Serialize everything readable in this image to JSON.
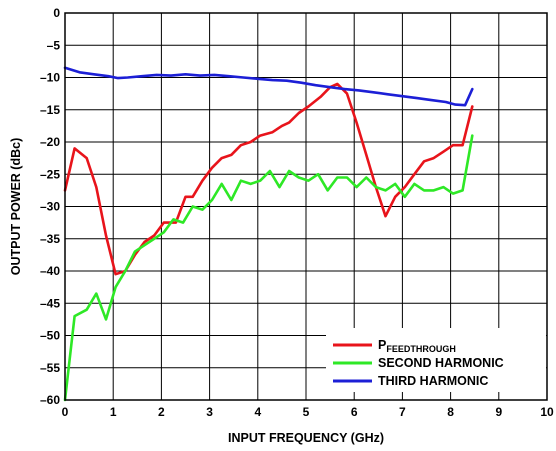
{
  "chart_data": {
    "type": "line",
    "xlabel": "INPUT FREQUENCY (GHz)",
    "ylabel": "OUTPUT POWER (dBc)",
    "xlim": [
      0,
      10
    ],
    "ylim": [
      -60,
      0
    ],
    "xticks": [
      "0",
      "1",
      "2",
      "3",
      "4",
      "5",
      "6",
      "7",
      "8",
      "9",
      "10"
    ],
    "yticks": [
      "0",
      "–5",
      "–10",
      "–15",
      "–20",
      "–25",
      "–30",
      "–35",
      "–40",
      "–45",
      "–50",
      "–55",
      "–60"
    ],
    "grid": true,
    "legend_position": "bottom-right",
    "series": [
      {
        "name": "P",
        "name_sub": "FEEDTHROUGH",
        "color": "#e8141b",
        "x": [
          0.0,
          0.2,
          0.45,
          0.65,
          0.85,
          1.05,
          1.25,
          1.45,
          1.65,
          1.85,
          2.05,
          2.3,
          2.5,
          2.65,
          2.85,
          3.05,
          3.25,
          3.45,
          3.65,
          3.85,
          4.05,
          4.3,
          4.5,
          4.65,
          4.85,
          5.05,
          5.3,
          5.5,
          5.65,
          5.85,
          6.05,
          6.25,
          6.45,
          6.65,
          6.85,
          7.05,
          7.25,
          7.45,
          7.65,
          7.85,
          8.05,
          8.25,
          8.45
        ],
        "y": [
          -27.5,
          -21.0,
          -22.5,
          -27.0,
          -34.5,
          -40.5,
          -40.0,
          -37.5,
          -35.5,
          -34.5,
          -32.5,
          -32.5,
          -28.5,
          -28.5,
          -26.0,
          -24.0,
          -22.5,
          -22.0,
          -20.5,
          -20.0,
          -19.0,
          -18.5,
          -17.5,
          -17.0,
          -15.5,
          -14.5,
          -13.0,
          -11.5,
          -11.0,
          -12.5,
          -17.0,
          -22.0,
          -27.0,
          -31.5,
          -28.5,
          -27.0,
          -25.0,
          -23.0,
          -22.5,
          -21.5,
          -20.5,
          -20.5,
          -14.5
        ]
      },
      {
        "name": "SECOND HARMONIC",
        "color": "#2ee826",
        "x": [
          0.0,
          0.2,
          0.45,
          0.65,
          0.85,
          1.05,
          1.25,
          1.45,
          1.65,
          1.85,
          2.05,
          2.25,
          2.45,
          2.65,
          2.85,
          3.05,
          3.25,
          3.45,
          3.65,
          3.85,
          4.05,
          4.25,
          4.45,
          4.65,
          4.85,
          5.05,
          5.25,
          5.45,
          5.65,
          5.85,
          6.05,
          6.25,
          6.45,
          6.65,
          6.85,
          7.05,
          7.25,
          7.45,
          7.65,
          7.85,
          8.05,
          8.25,
          8.45
        ],
        "y": [
          -60.0,
          -47.0,
          -46.0,
          -43.5,
          -47.5,
          -42.5,
          -40.0,
          -37.0,
          -36.0,
          -35.0,
          -34.0,
          -32.0,
          -32.5,
          -30.0,
          -30.5,
          -29.0,
          -26.5,
          -29.0,
          -26.0,
          -26.5,
          -26.0,
          -24.5,
          -27.0,
          -24.5,
          -25.5,
          -26.0,
          -25.0,
          -27.5,
          -25.5,
          -25.5,
          -27.0,
          -25.5,
          -27.0,
          -27.5,
          -26.5,
          -28.5,
          -26.5,
          -27.5,
          -27.5,
          -27.0,
          -28.0,
          -27.5,
          -19.0
        ]
      },
      {
        "name": "THIRD HARMONIC",
        "color": "#1c1fd6",
        "x": [
          0.0,
          0.3,
          0.6,
          0.9,
          1.1,
          1.3,
          1.6,
          1.9,
          2.2,
          2.5,
          2.8,
          3.1,
          3.4,
          3.7,
          4.0,
          4.3,
          4.6,
          4.9,
          5.2,
          5.5,
          5.8,
          6.1,
          6.4,
          6.7,
          7.0,
          7.3,
          7.6,
          7.9,
          8.1,
          8.3,
          8.45
        ],
        "y": [
          -8.5,
          -9.2,
          -9.5,
          -9.8,
          -10.1,
          -10.0,
          -9.8,
          -9.6,
          -9.7,
          -9.5,
          -9.7,
          -9.6,
          -9.8,
          -10.0,
          -10.2,
          -10.4,
          -10.5,
          -10.8,
          -11.2,
          -11.5,
          -11.8,
          -12.0,
          -12.3,
          -12.6,
          -12.9,
          -13.2,
          -13.5,
          -13.8,
          -14.2,
          -14.3,
          -11.8
        ]
      }
    ]
  }
}
